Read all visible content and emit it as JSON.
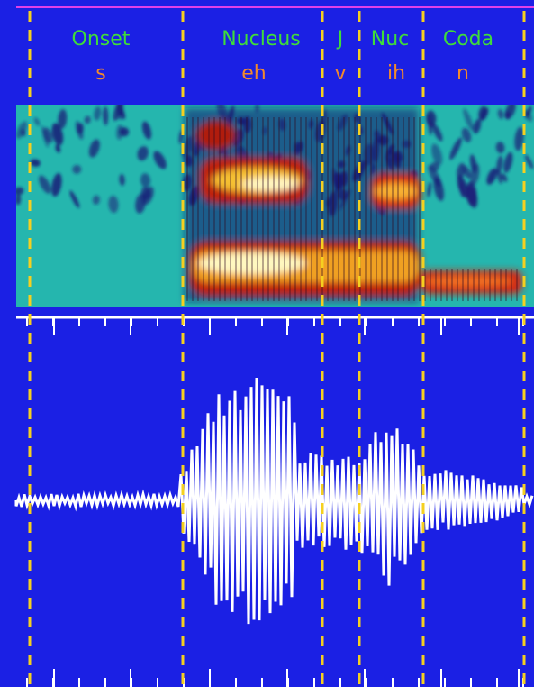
{
  "segments": [
    {
      "label": "Onset",
      "phone": "s"
    },
    {
      "label": "Nucleus",
      "phone": "eh"
    },
    {
      "label": "J",
      "phone": "v"
    },
    {
      "label": "Nuc",
      "phone": "ih"
    },
    {
      "label": "Coda",
      "phone": "n"
    }
  ]
}
